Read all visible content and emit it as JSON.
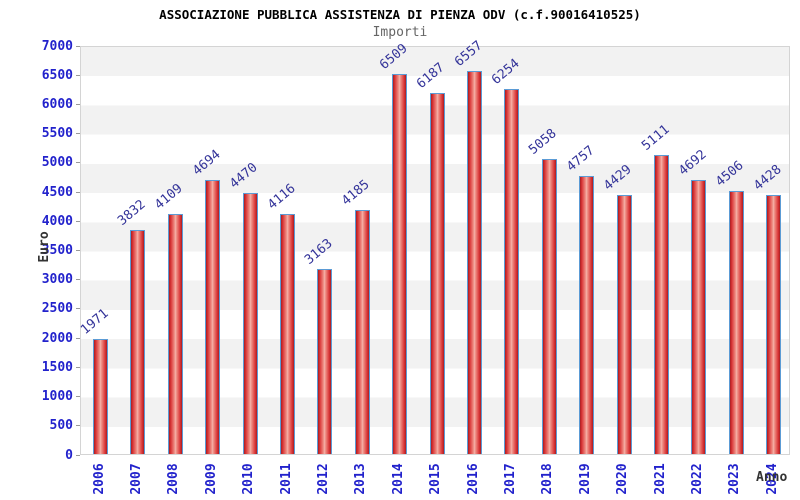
{
  "header": {
    "title": "ASSOCIAZIONE PUBBLICA ASSISTENZA DI PIENZA ODV (c.f.90016410525)",
    "subtitle": "Importi"
  },
  "chart_data": {
    "type": "bar",
    "title": "ASSOCIAZIONE PUBBLICA ASSISTENZA DI PIENZA ODV (c.f.90016410525)",
    "subtitle": "Importi",
    "xlabel": "Anno",
    "ylabel": "Euro",
    "categories": [
      "2006",
      "2007",
      "2008",
      "2009",
      "2010",
      "2011",
      "2012",
      "2013",
      "2014",
      "2015",
      "2016",
      "2017",
      "2018",
      "2019",
      "2020",
      "2021",
      "2022",
      "2023",
      "2024"
    ],
    "values": [
      1971,
      3832,
      4109,
      4694,
      4470,
      4116,
      3163,
      4185,
      6509,
      6187,
      6557,
      6254,
      5058,
      4757,
      4429,
      5111,
      4692,
      4506,
      4428
    ],
    "ylim": [
      0,
      7000
    ],
    "y_ticks": [
      0,
      500,
      1000,
      1500,
      2000,
      2500,
      3000,
      3500,
      4000,
      4500,
      5000,
      5500,
      6000,
      6500,
      7000
    ],
    "grid": "horizontal-bands-alternating",
    "legend": "none",
    "value_labels": "above-bars-rotated",
    "colors": {
      "bar_border": "#5b9bd5",
      "bar_edge": "#a81d22",
      "bar_mid": "#d93435",
      "bar_center": "#f5b3aa",
      "axis_tick_label": "#2222cc",
      "value_label": "#333399",
      "band_gray": "#f2f2f2",
      "band_white": "#ffffff",
      "plot_border": "#d4d4d4",
      "axis_title": "#333333",
      "title_color": "#000000",
      "subtitle_color": "#666666"
    }
  }
}
